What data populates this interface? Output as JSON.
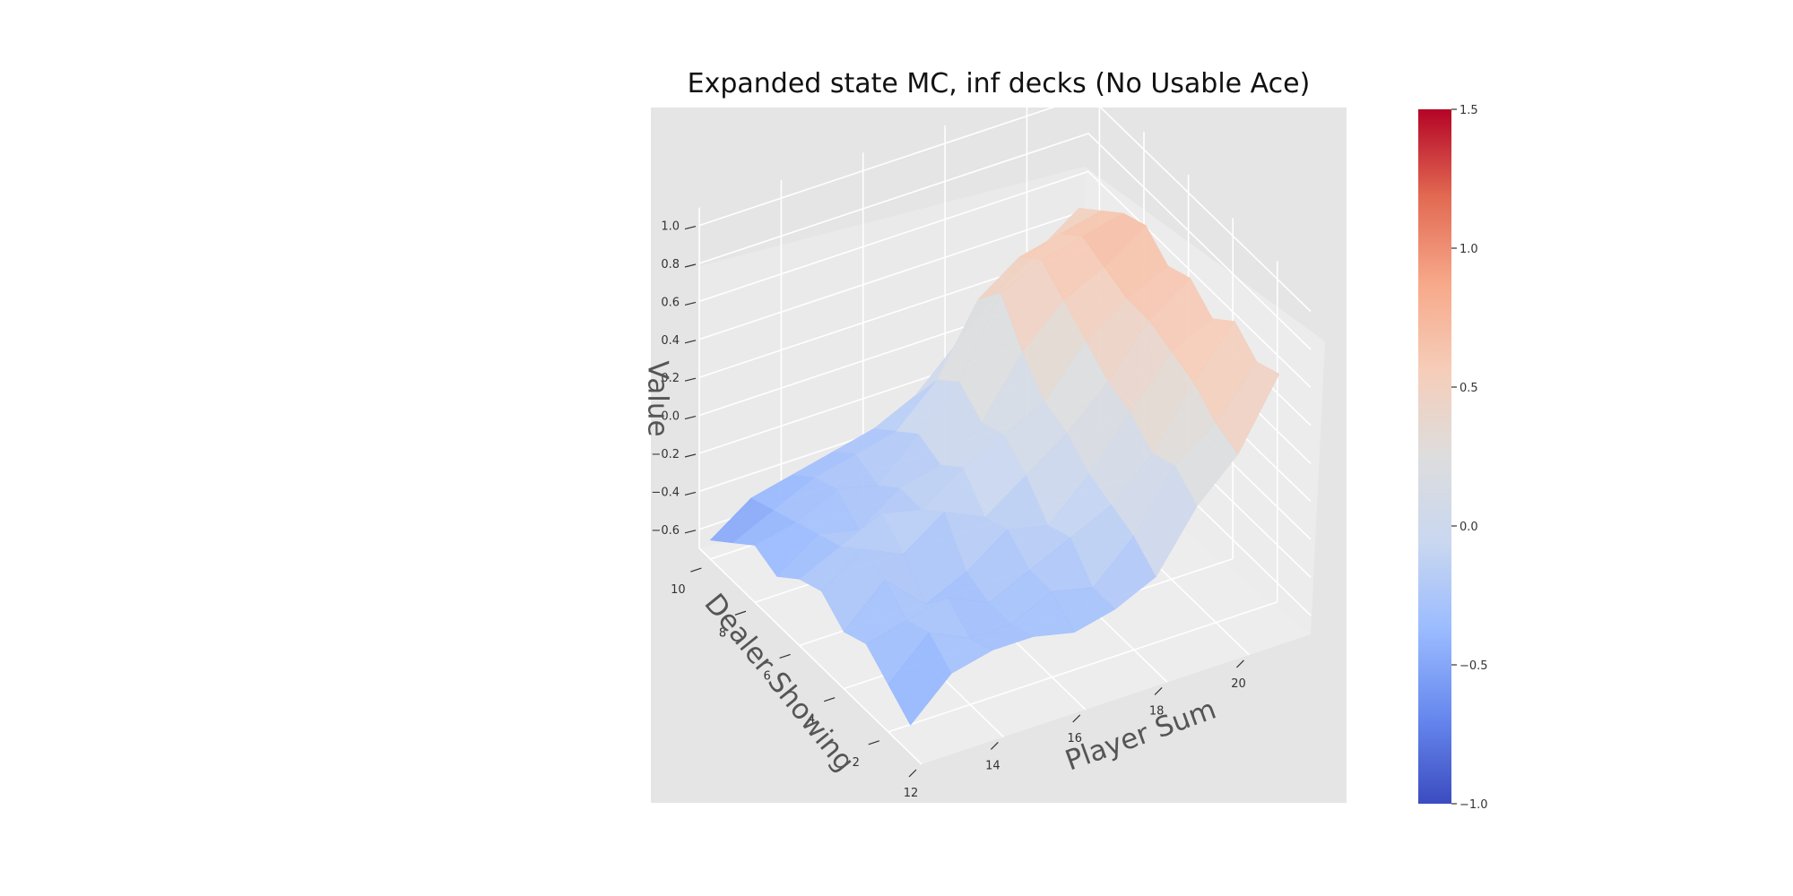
{
  "chart_data": {
    "type": "surface3d",
    "title": "Expanded state MC, inf decks (No Usable Ace)",
    "xlabel": "Player Sum",
    "ylabel": "Dealer Showing",
    "zlabel": "Value",
    "x": [
      12,
      13,
      14,
      15,
      16,
      17,
      18,
      19,
      20,
      21
    ],
    "y": [
      1,
      2,
      3,
      4,
      5,
      6,
      7,
      8,
      9,
      10
    ],
    "xticks": [
      "12",
      "14",
      "16",
      "18",
      "20"
    ],
    "yticks": [
      "2",
      "4",
      "6",
      "8",
      "10"
    ],
    "zticks": [
      "−0.6",
      "−0.4",
      "−0.2",
      "0.0",
      "0.2",
      "0.4",
      "0.6",
      "0.8",
      "1.0"
    ],
    "zlim": [
      -0.7,
      1.0
    ],
    "z": [
      [
        -0.55,
        -0.35,
        -0.3,
        -0.3,
        -0.35,
        -0.3,
        -0.2,
        0.1,
        0.3,
        0.65
      ],
      [
        -0.45,
        -0.25,
        -0.35,
        -0.35,
        -0.25,
        -0.3,
        -0.1,
        0.2,
        0.35,
        0.6
      ],
      [
        -0.35,
        -0.3,
        -0.25,
        -0.35,
        -0.25,
        -0.15,
        -0.05,
        0.15,
        0.45,
        0.7
      ],
      [
        -0.4,
        -0.2,
        -0.4,
        -0.3,
        -0.15,
        -0.2,
        0.0,
        0.25,
        0.5,
        0.6
      ],
      [
        -0.3,
        -0.15,
        -0.25,
        -0.1,
        -0.2,
        -0.05,
        0.1,
        0.3,
        0.55,
        0.7
      ],
      [
        -0.35,
        -0.25,
        -0.15,
        -0.2,
        -0.05,
        0.05,
        0.15,
        0.4,
        0.55,
        0.65
      ],
      [
        -0.45,
        -0.3,
        -0.35,
        -0.2,
        -0.15,
        0.0,
        0.3,
        0.5,
        0.6,
        0.75
      ],
      [
        -0.4,
        -0.35,
        -0.25,
        -0.3,
        -0.1,
        0.1,
        0.5,
        0.6,
        0.65,
        0.7
      ],
      [
        -0.5,
        -0.4,
        -0.3,
        -0.25,
        -0.2,
        0.0,
        0.35,
        0.5,
        0.55,
        0.6
      ],
      [
        -0.6,
        -0.45,
        -0.4,
        -0.35,
        -0.3,
        -0.2,
        0.0,
        0.2,
        0.35,
        0.5
      ]
    ],
    "colorbar": {
      "min": -1.0,
      "max": 1.5,
      "ticks": [
        -1.0,
        -0.5,
        0.0,
        0.5,
        1.0,
        1.5
      ],
      "tick_labels": [
        "−1.0",
        "−0.5",
        "0.0",
        "0.5",
        "1.0",
        "1.5"
      ],
      "colormap": "coolwarm",
      "colors": [
        "#3b4cc0",
        "#6788ee",
        "#9abbff",
        "#c9d7f0",
        "#dddddd",
        "#f6cdb9",
        "#f7a889",
        "#e26952",
        "#b40426"
      ]
    },
    "grid": true,
    "pane_color": "#e5e5e5",
    "view": "elevated perspective, dealer axis receding to the left, player sum to the right"
  }
}
